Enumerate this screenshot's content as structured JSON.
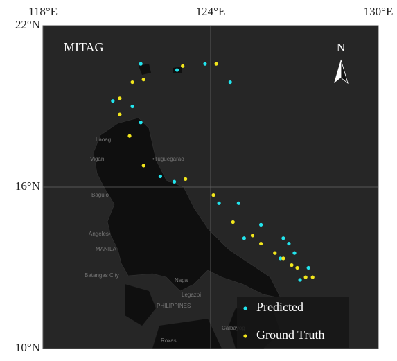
{
  "chart_data": {
    "type": "scatter",
    "title": "MITAG",
    "north_label": "N",
    "xlim": [
      118,
      130
    ],
    "ylim": [
      10,
      22
    ],
    "xticks": [
      {
        "value": 118,
        "label": "118°E"
      },
      {
        "value": 124,
        "label": "124°E"
      },
      {
        "value": 130,
        "label": "130°E"
      }
    ],
    "yticks": [
      {
        "value": 10,
        "label": "10°N"
      },
      {
        "value": 16,
        "label": "16°N"
      },
      {
        "value": 22,
        "label": "22°N"
      }
    ],
    "grid": true,
    "legend": "lower right",
    "series": [
      {
        "name": "Predicted",
        "color": "#22e5ee",
        "x": [
          121.5,
          122.8,
          123.8,
          124.7,
          120.5,
          121.2,
          121.5,
          122.2,
          122.7,
          124.3,
          125.0,
          125.8,
          125.2,
          126.6,
          126.8,
          127.0,
          126.5,
          127.5,
          127.2
        ],
        "values": [
          20.58,
          20.35,
          20.58,
          19.9,
          19.2,
          19.0,
          18.4,
          16.4,
          16.2,
          15.4,
          15.4,
          14.6,
          14.1,
          14.1,
          13.9,
          13.55,
          13.35,
          13.0,
          12.55
        ]
      },
      {
        "name": "Ground Truth",
        "color": "#f2e61c",
        "x": [
          123.0,
          124.2,
          121.6,
          121.2,
          120.75,
          120.75,
          121.1,
          121.6,
          123.1,
          124.1,
          124.8,
          125.5,
          125.8,
          126.3,
          126.6,
          126.9,
          127.1,
          127.4,
          127.65
        ],
        "values": [
          20.5,
          20.58,
          20.0,
          19.9,
          19.3,
          18.7,
          17.9,
          16.8,
          16.3,
          15.7,
          14.7,
          14.2,
          13.9,
          13.55,
          13.35,
          13.1,
          13.0,
          12.65,
          12.65
        ]
      }
    ]
  },
  "place_labels": [
    "Laoag",
    "Vigan",
    "•Tuguegarao",
    "Baguio",
    "Angeles•",
    "MANILA",
    "Batangas City",
    "Naga",
    "Legazpi",
    "PHILIPPINES",
    "Calbayog",
    "Roxas"
  ]
}
